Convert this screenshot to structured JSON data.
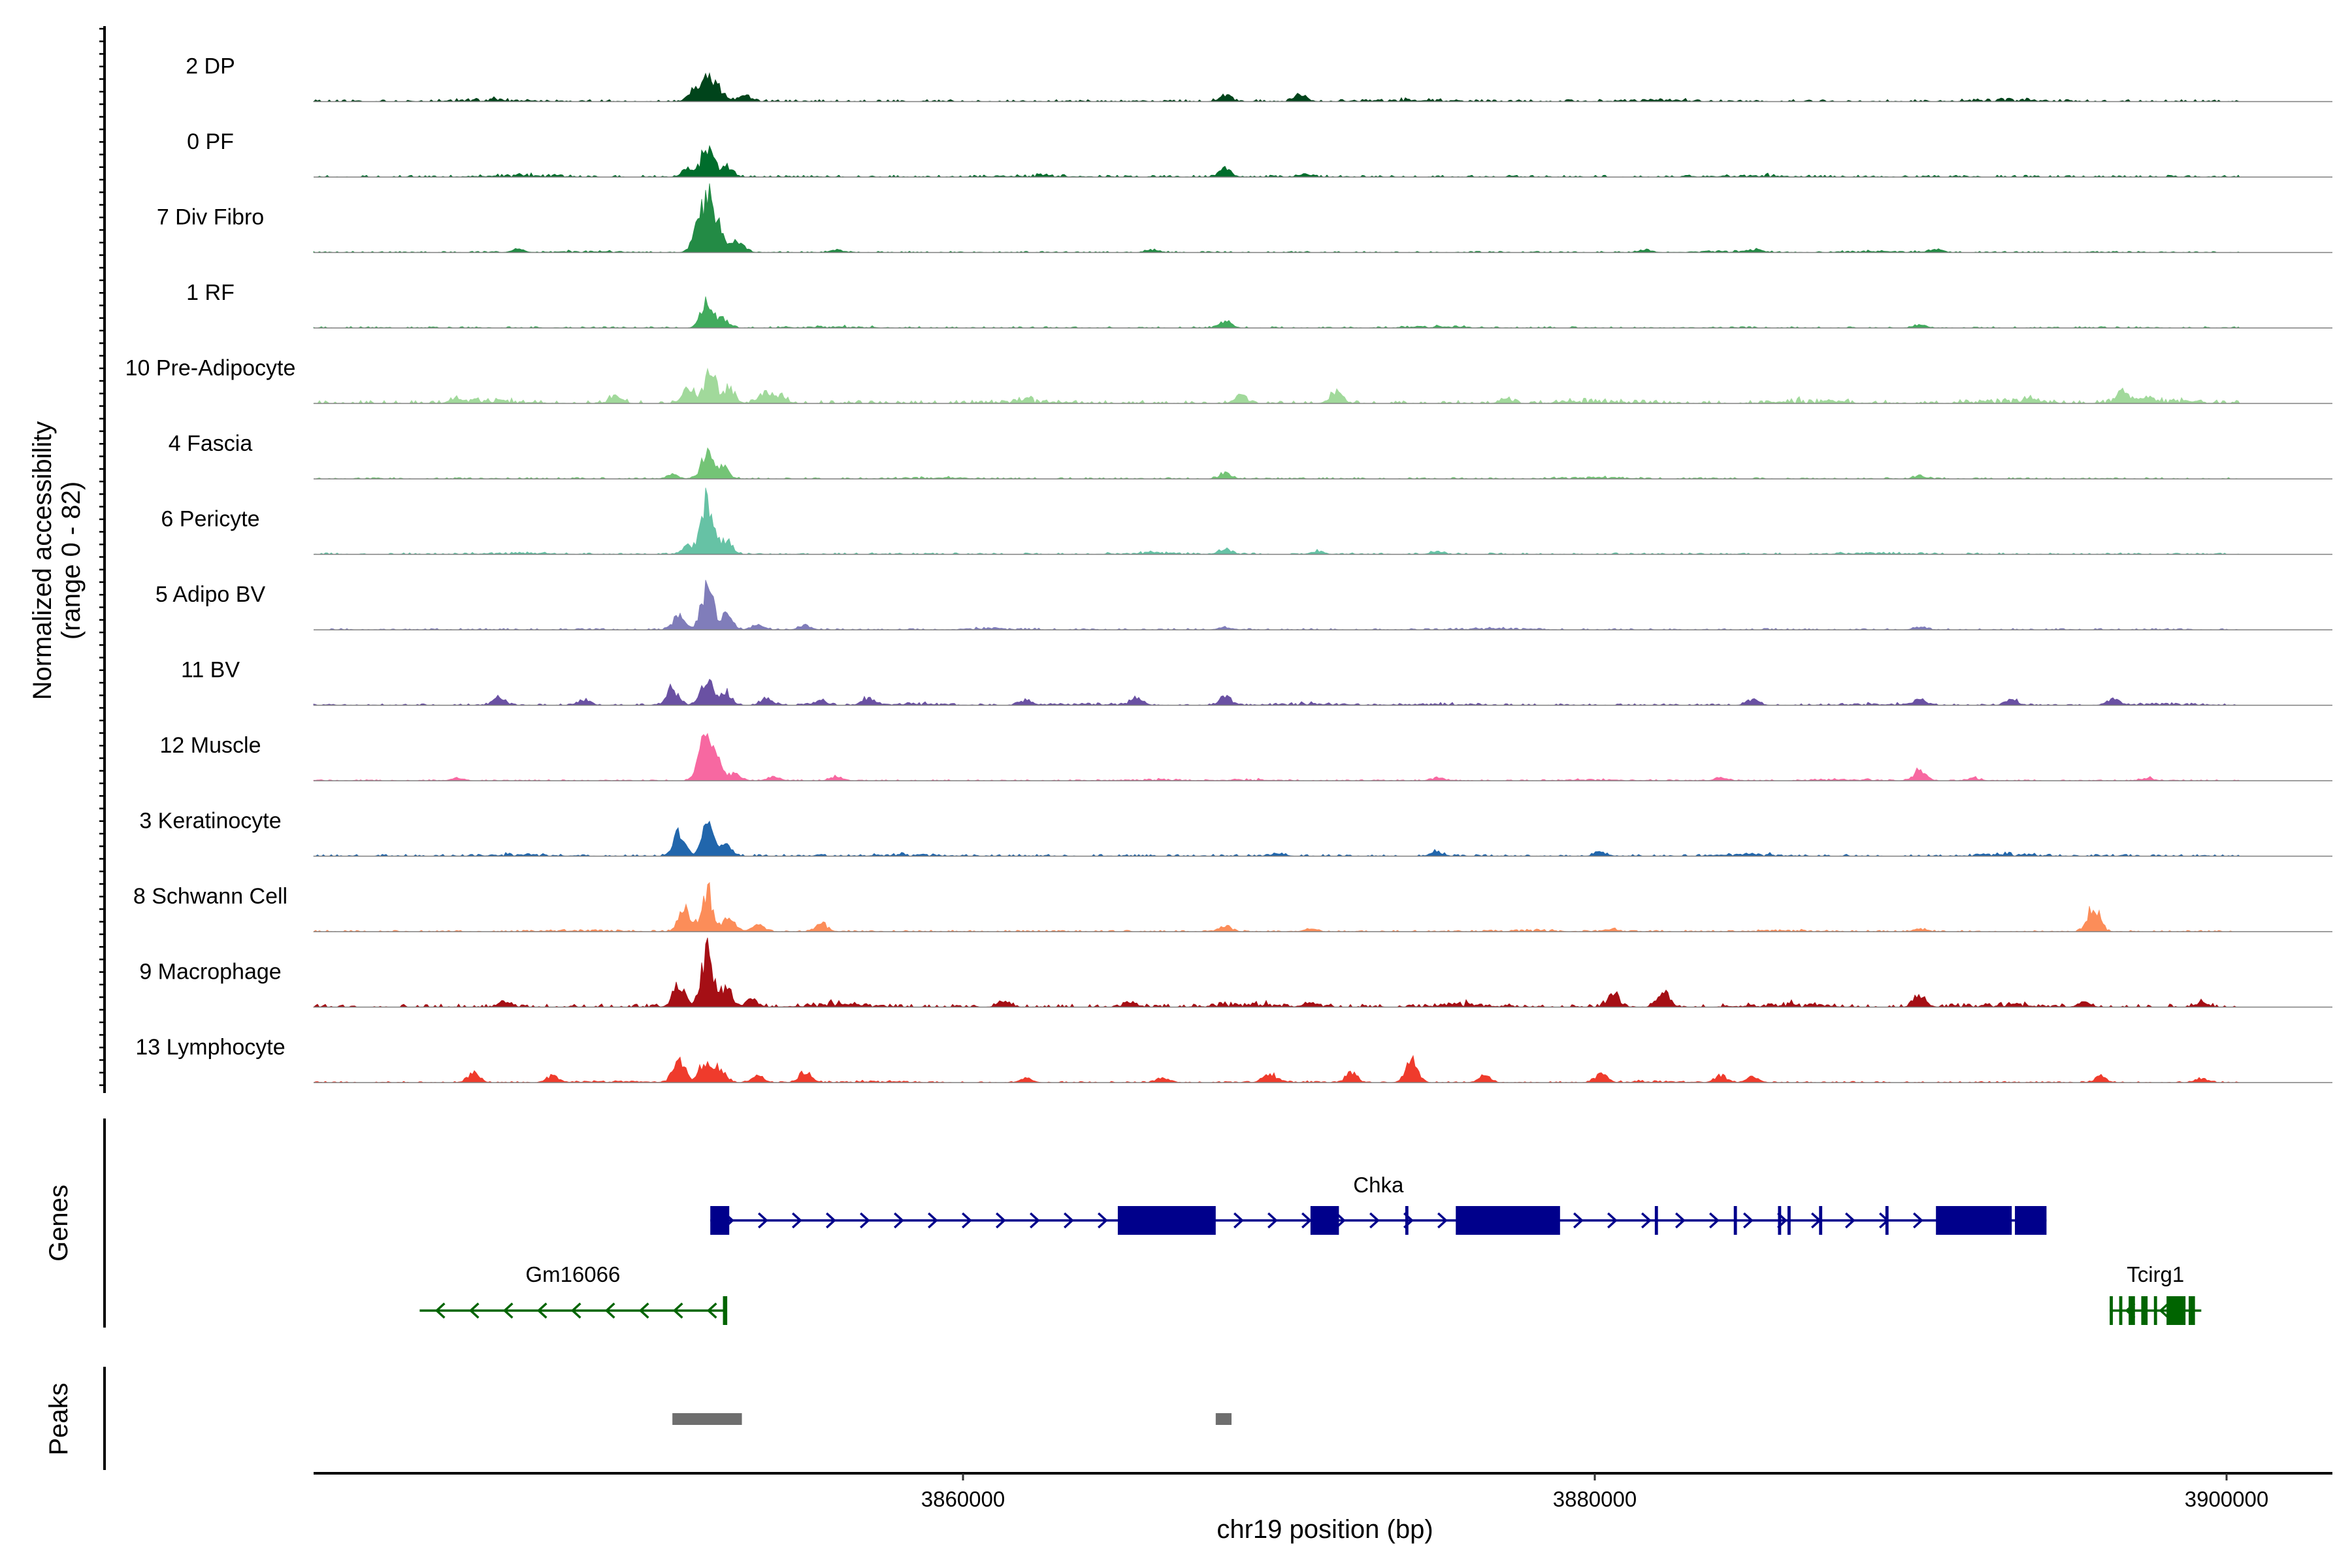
{
  "chart_data": {
    "type": "area",
    "chromosome": "chr19",
    "xlabel": "chr19 position (bp)",
    "ylabel": "Normalized accessibility",
    "ylabel_range": "(range 0 - 82)",
    "ylim": [
      0,
      82
    ],
    "xlim": [
      3840000,
      3902000
    ],
    "x_ticks": [
      3860000,
      3880000,
      3900000
    ],
    "x_tick_labels": [
      "3860000",
      "3880000",
      "3900000"
    ],
    "grid": false,
    "tracks": [
      {
        "name": "2 DP",
        "color": "#00441B",
        "peaks": [
          [
            3851500,
            9
          ],
          [
            3851900,
            17
          ],
          [
            3852300,
            8
          ],
          [
            3868300,
            5
          ],
          [
            3870700,
            5
          ],
          [
            3853100,
            4
          ]
        ],
        "noise": 1.3,
        "noise_spots": [
          3845000,
          3874000,
          3882000,
          3893000
        ]
      },
      {
        "name": "0 PF",
        "color": "#006D2C",
        "peaks": [
          [
            3851300,
            5
          ],
          [
            3851900,
            22
          ],
          [
            3852500,
            9
          ],
          [
            3868300,
            6
          ],
          [
            3870800,
            2
          ]
        ],
        "noise": 1.2,
        "noise_spots": [
          3846000,
          3862000,
          3885000
        ]
      },
      {
        "name": "7 Div Fibro",
        "color": "#238B45",
        "peaks": [
          [
            3851600,
            12
          ],
          [
            3851900,
            38
          ],
          [
            3852300,
            14
          ],
          [
            3852900,
            8
          ],
          [
            3845900,
            2
          ],
          [
            3856000,
            2
          ],
          [
            3866000,
            2
          ],
          [
            3881600,
            2
          ],
          [
            3885100,
            2
          ],
          [
            3890800,
            2
          ]
        ],
        "noise": 0.8,
        "noise_spots": [
          3848000,
          3884000,
          3889000
        ]
      },
      {
        "name": "1 RF",
        "color": "#41AB5D",
        "peaks": [
          [
            3851900,
            21
          ],
          [
            3852400,
            6
          ],
          [
            3868300,
            5
          ],
          [
            3890300,
            2
          ]
        ],
        "noise": 0.9,
        "noise_spots": [
          3856000,
          3875000
        ]
      },
      {
        "name": "10 Pre-Adipocyte",
        "color": "#A1D99B",
        "peaks": [
          [
            3851300,
            13
          ],
          [
            3852000,
            24
          ],
          [
            3852600,
            10
          ],
          [
            3853700,
            8
          ],
          [
            3854200,
            6
          ],
          [
            3849000,
            6
          ],
          [
            3868800,
            6
          ],
          [
            3871800,
            9
          ],
          [
            3877200,
            3
          ],
          [
            3893800,
            3
          ],
          [
            3896700,
            8
          ],
          [
            3897500,
            4
          ],
          [
            3844000,
            3
          ]
        ],
        "noise": 2.0,
        "noise_spots": [
          3845000,
          3862000,
          3880000,
          3887000,
          3893000,
          3898000
        ]
      },
      {
        "name": "4 Fascia",
        "color": "#74C476",
        "peaks": [
          [
            3851900,
            20
          ],
          [
            3852400,
            8
          ],
          [
            3868300,
            4
          ],
          [
            3850800,
            3
          ],
          [
            3890300,
            2
          ]
        ],
        "noise": 0.9,
        "noise_spots": [
          3859000,
          3880000
        ]
      },
      {
        "name": "6 Pericyte",
        "color": "#66C2A5",
        "peaks": [
          [
            3851900,
            37
          ],
          [
            3852500,
            10
          ],
          [
            3851300,
            6
          ],
          [
            3868300,
            4
          ],
          [
            3871200,
            2
          ],
          [
            3875000,
            2
          ]
        ],
        "noise": 1.0,
        "noise_spots": [
          3846000,
          3866000,
          3889000
        ]
      },
      {
        "name": "5 Adipo BV",
        "color": "#807DBA",
        "peaks": [
          [
            3851000,
            10
          ],
          [
            3851900,
            30
          ],
          [
            3852500,
            10
          ],
          [
            3853500,
            4
          ],
          [
            3855000,
            3
          ],
          [
            3868300,
            2
          ],
          [
            3890300,
            2
          ]
        ],
        "noise": 0.9,
        "noise_spots": [
          3861000,
          3877000
        ]
      },
      {
        "name": "11 BV",
        "color": "#6A51A3",
        "peaks": [
          [
            3850800,
            12
          ],
          [
            3851900,
            18
          ],
          [
            3852500,
            9
          ],
          [
            3845300,
            6
          ],
          [
            3848000,
            4
          ],
          [
            3853800,
            5
          ],
          [
            3855500,
            4
          ],
          [
            3857000,
            5
          ],
          [
            3862000,
            4
          ],
          [
            3865500,
            5
          ],
          [
            3868300,
            7
          ],
          [
            3885000,
            4
          ],
          [
            3890300,
            4
          ],
          [
            3893200,
            4
          ],
          [
            3896400,
            4
          ]
        ],
        "noise": 1.0,
        "noise_spots": [
          3858500,
          3864000,
          3871000,
          3875000,
          3889000,
          3898000
        ]
      },
      {
        "name": "12 Muscle",
        "color": "#F768A1",
        "peaks": [
          [
            3851800,
            25
          ],
          [
            3852200,
            15
          ],
          [
            3852800,
            5
          ],
          [
            3854000,
            3
          ],
          [
            3856000,
            3
          ],
          [
            3890300,
            8
          ],
          [
            3844000,
            2
          ],
          [
            3875000,
            2
          ],
          [
            3884000,
            2
          ],
          [
            3892000,
            2
          ],
          [
            3897500,
            2
          ]
        ],
        "noise": 0.7,
        "noise_spots": [
          3866000,
          3869000,
          3880000,
          3888000
        ]
      },
      {
        "name": "3 Keratinocyte",
        "color": "#2166AC",
        "peaks": [
          [
            3851000,
            16
          ],
          [
            3851900,
            22
          ],
          [
            3852500,
            7
          ],
          [
            3875000,
            3
          ],
          [
            3880200,
            3
          ],
          [
            3870000,
            2
          ]
        ],
        "noise": 1.2,
        "noise_spots": [
          3846000,
          3858000,
          3885000,
          3893000
        ]
      },
      {
        "name": "8 Schwann Cell",
        "color": "#FC8D59",
        "peaks": [
          [
            3851200,
            18
          ],
          [
            3851900,
            28
          ],
          [
            3852600,
            12
          ],
          [
            3853500,
            5
          ],
          [
            3855500,
            6
          ],
          [
            3868300,
            4
          ],
          [
            3895800,
            20
          ],
          [
            3871000,
            2
          ],
          [
            3880500,
            2
          ],
          [
            3890300,
            2
          ]
        ],
        "noise": 0.9,
        "noise_spots": [
          3848000,
          3878000,
          3886000
        ]
      },
      {
        "name": "9 Macrophage",
        "color": "#A50F15",
        "peaks": [
          [
            3851000,
            15
          ],
          [
            3851900,
            38
          ],
          [
            3852500,
            14
          ],
          [
            3853300,
            6
          ],
          [
            3845500,
            4
          ],
          [
            3861300,
            4
          ],
          [
            3865300,
            4
          ],
          [
            3871000,
            3
          ],
          [
            3880600,
            9
          ],
          [
            3882200,
            10
          ],
          [
            3890300,
            8
          ],
          [
            3899200,
            3
          ],
          [
            3895500,
            3
          ]
        ],
        "noise": 2.0,
        "noise_spots": [
          3856000,
          3869000,
          3876000,
          3886000,
          3893000
        ]
      },
      {
        "name": "13 Lymphocyte",
        "color": "#EF3B2C",
        "peaks": [
          [
            3851000,
            18
          ],
          [
            3851800,
            13
          ],
          [
            3852300,
            11
          ],
          [
            3853500,
            5
          ],
          [
            3844500,
            6
          ],
          [
            3847000,
            5
          ],
          [
            3855000,
            8
          ],
          [
            3869700,
            6
          ],
          [
            3872300,
            7
          ],
          [
            3874200,
            16
          ],
          [
            3876500,
            5
          ],
          [
            3880200,
            6
          ],
          [
            3884000,
            5
          ],
          [
            3885000,
            4
          ],
          [
            3896000,
            4
          ],
          [
            3899200,
            3
          ],
          [
            3862000,
            3
          ],
          [
            3866300,
            3
          ]
        ],
        "noise": 0.8,
        "noise_spots": [
          3849000,
          3857000,
          3870500,
          3882000
        ]
      }
    ]
  },
  "genes": {
    "label": "Genes",
    "items": [
      {
        "name": "Chka",
        "strand": "+",
        "start": 3852000,
        "end": 3894300,
        "color": "#00008B",
        "exons": [
          [
            3852000,
            3852600
          ],
          [
            3864900,
            3868000
          ],
          [
            3871000,
            3871900
          ],
          [
            3874000,
            3874100
          ],
          [
            3875600,
            3878900
          ],
          [
            3881900,
            3882000
          ],
          [
            3884400,
            3884500
          ],
          [
            3885800,
            3885900
          ],
          [
            3886100,
            3886200
          ],
          [
            3887100,
            3887200
          ],
          [
            3889200,
            3889300
          ],
          [
            3890800,
            3893200
          ],
          [
            3893300,
            3894300
          ]
        ]
      },
      {
        "name": "Gm16066",
        "strand": "-",
        "start": 3842800,
        "end": 3852500,
        "color": "#006400",
        "exons": [
          [
            3852400,
            3852500
          ]
        ]
      },
      {
        "name": "Tcirg1",
        "strand": "-",
        "start": 3896300,
        "end": 3899200,
        "color": "#006400",
        "exons": [
          [
            3896300,
            3896400
          ],
          [
            3896600,
            3896700
          ],
          [
            3896900,
            3897100
          ],
          [
            3897300,
            3897500
          ],
          [
            3897700,
            3897800
          ],
          [
            3898100,
            3898700
          ],
          [
            3898800,
            3899000
          ]
        ]
      }
    ]
  },
  "peaks": {
    "label": "Peaks",
    "color": "#6E6E6E",
    "regions": [
      [
        3850800,
        3853000
      ],
      [
        3868000,
        3868500
      ]
    ]
  }
}
